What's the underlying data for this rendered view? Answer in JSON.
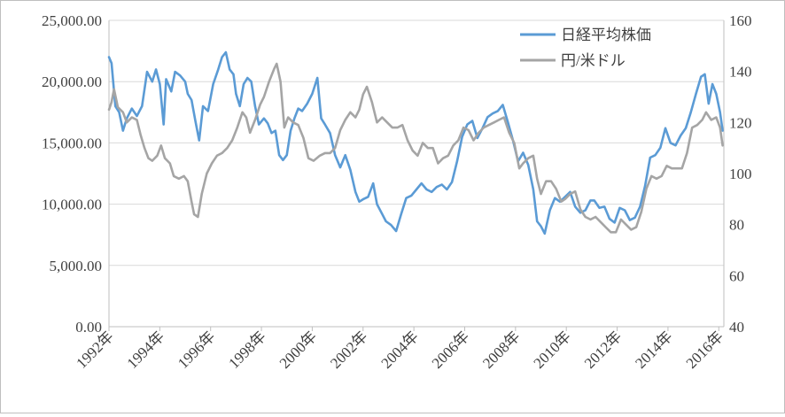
{
  "chart_data": {
    "type": "line",
    "title": "",
    "xlabel": "",
    "ylabel": "",
    "y2label": "",
    "grid": "horizontal",
    "legend_position": "top-right",
    "x_ticks": [
      "1992年",
      "1994年",
      "1996年",
      "1998年",
      "2000年",
      "2002年",
      "2004年",
      "2006年",
      "2008年",
      "2010年",
      "2012年",
      "2014年",
      "2016年"
    ],
    "x_range": [
      1992.0,
      2016.2
    ],
    "left_axis": {
      "range": [
        0,
        25000
      ],
      "ticks": [
        {
          "value": 0,
          "label": "0.00"
        },
        {
          "value": 5000,
          "label": "5,000.00"
        },
        {
          "value": 10000,
          "label": "10,000.00"
        },
        {
          "value": 15000,
          "label": "15,000.00"
        },
        {
          "value": 20000,
          "label": "20,000.00"
        },
        {
          "value": 25000,
          "label": "25,000.00"
        }
      ]
    },
    "right_axis": {
      "range": [
        40,
        160
      ],
      "ticks": [
        {
          "value": 40,
          "label": "40"
        },
        {
          "value": 60,
          "label": "60"
        },
        {
          "value": 80,
          "label": "80"
        },
        {
          "value": 100,
          "label": "100"
        },
        {
          "value": 120,
          "label": "120"
        },
        {
          "value": 140,
          "label": "140"
        },
        {
          "value": 160,
          "label": "160"
        }
      ]
    },
    "series": [
      {
        "name": "日経平均株価",
        "axis": "left",
        "color": "#5b9bd5",
        "points": [
          [
            1992.0,
            22000
          ],
          [
            1992.1,
            21500
          ],
          [
            1992.25,
            18000
          ],
          [
            1992.4,
            17500
          ],
          [
            1992.55,
            16000
          ],
          [
            1992.7,
            17000
          ],
          [
            1992.9,
            17800
          ],
          [
            1993.1,
            17200
          ],
          [
            1993.3,
            18000
          ],
          [
            1993.5,
            20800
          ],
          [
            1993.7,
            20000
          ],
          [
            1993.85,
            21000
          ],
          [
            1994.0,
            19800
          ],
          [
            1994.15,
            16500
          ],
          [
            1994.25,
            20200
          ],
          [
            1994.45,
            19200
          ],
          [
            1994.6,
            20800
          ],
          [
            1994.8,
            20500
          ],
          [
            1995.0,
            20000
          ],
          [
            1995.1,
            19000
          ],
          [
            1995.25,
            18500
          ],
          [
            1995.4,
            16800
          ],
          [
            1995.55,
            15200
          ],
          [
            1995.7,
            18000
          ],
          [
            1995.9,
            17600
          ],
          [
            1996.1,
            19800
          ],
          [
            1996.3,
            21000
          ],
          [
            1996.45,
            22000
          ],
          [
            1996.6,
            22400
          ],
          [
            1996.75,
            21000
          ],
          [
            1996.9,
            20600
          ],
          [
            1997.0,
            19000
          ],
          [
            1997.15,
            18000
          ],
          [
            1997.3,
            19800
          ],
          [
            1997.45,
            20300
          ],
          [
            1997.6,
            20000
          ],
          [
            1997.75,
            18000
          ],
          [
            1997.9,
            16500
          ],
          [
            1998.1,
            17000
          ],
          [
            1998.25,
            16600
          ],
          [
            1998.4,
            15800
          ],
          [
            1998.55,
            16000
          ],
          [
            1998.7,
            14000
          ],
          [
            1998.85,
            13600
          ],
          [
            1999.0,
            14000
          ],
          [
            1999.15,
            16000
          ],
          [
            1999.3,
            17000
          ],
          [
            1999.45,
            17800
          ],
          [
            1999.6,
            17600
          ],
          [
            1999.8,
            18200
          ],
          [
            2000.0,
            19000
          ],
          [
            2000.2,
            20300
          ],
          [
            2000.35,
            17000
          ],
          [
            2000.5,
            16500
          ],
          [
            2000.7,
            15800
          ],
          [
            2000.9,
            14000
          ],
          [
            2001.1,
            13000
          ],
          [
            2001.3,
            14000
          ],
          [
            2001.5,
            12800
          ],
          [
            2001.7,
            11000
          ],
          [
            2001.85,
            10200
          ],
          [
            2002.0,
            10400
          ],
          [
            2002.2,
            10600
          ],
          [
            2002.4,
            11700
          ],
          [
            2002.55,
            10000
          ],
          [
            2002.75,
            9200
          ],
          [
            2002.9,
            8600
          ],
          [
            2003.1,
            8300
          ],
          [
            2003.3,
            7800
          ],
          [
            2003.5,
            9200
          ],
          [
            2003.7,
            10500
          ],
          [
            2003.9,
            10700
          ],
          [
            2004.1,
            11200
          ],
          [
            2004.3,
            11700
          ],
          [
            2004.5,
            11200
          ],
          [
            2004.7,
            11000
          ],
          [
            2004.9,
            11400
          ],
          [
            2005.1,
            11600
          ],
          [
            2005.3,
            11200
          ],
          [
            2005.5,
            11800
          ],
          [
            2005.7,
            13500
          ],
          [
            2005.9,
            15500
          ],
          [
            2006.1,
            16500
          ],
          [
            2006.3,
            16800
          ],
          [
            2006.5,
            15400
          ],
          [
            2006.7,
            16200
          ],
          [
            2006.9,
            17100
          ],
          [
            2007.1,
            17400
          ],
          [
            2007.3,
            17600
          ],
          [
            2007.5,
            18100
          ],
          [
            2007.7,
            16700
          ],
          [
            2007.9,
            15200
          ],
          [
            2008.1,
            13500
          ],
          [
            2008.3,
            14200
          ],
          [
            2008.5,
            13200
          ],
          [
            2008.7,
            11200
          ],
          [
            2008.85,
            8600
          ],
          [
            2009.0,
            8200
          ],
          [
            2009.15,
            7600
          ],
          [
            2009.35,
            9500
          ],
          [
            2009.55,
            10500
          ],
          [
            2009.75,
            10200
          ],
          [
            2009.95,
            10600
          ],
          [
            2010.15,
            11000
          ],
          [
            2010.35,
            9800
          ],
          [
            2010.55,
            9300
          ],
          [
            2010.75,
            9500
          ],
          [
            2010.95,
            10300
          ],
          [
            2011.1,
            10300
          ],
          [
            2011.3,
            9700
          ],
          [
            2011.5,
            9800
          ],
          [
            2011.7,
            8800
          ],
          [
            2011.9,
            8500
          ],
          [
            2012.1,
            9700
          ],
          [
            2012.3,
            9500
          ],
          [
            2012.5,
            8700
          ],
          [
            2012.7,
            8900
          ],
          [
            2012.9,
            9800
          ],
          [
            2013.1,
            11500
          ],
          [
            2013.3,
            13800
          ],
          [
            2013.5,
            14000
          ],
          [
            2013.7,
            14600
          ],
          [
            2013.9,
            16200
          ],
          [
            2014.1,
            15000
          ],
          [
            2014.3,
            14800
          ],
          [
            2014.5,
            15600
          ],
          [
            2014.7,
            16200
          ],
          [
            2014.9,
            17500
          ],
          [
            2015.1,
            19000
          ],
          [
            2015.3,
            20400
          ],
          [
            2015.45,
            20600
          ],
          [
            2015.6,
            18200
          ],
          [
            2015.75,
            19800
          ],
          [
            2015.9,
            19000
          ],
          [
            2016.05,
            17500
          ],
          [
            2016.15,
            16000
          ]
        ]
      },
      {
        "name": "円/米ドル",
        "axis": "right",
        "color": "#a5a5a5",
        "points": [
          [
            1992.0,
            125
          ],
          [
            1992.1,
            128
          ],
          [
            1992.2,
            133
          ],
          [
            1992.35,
            126
          ],
          [
            1992.55,
            124
          ],
          [
            1992.7,
            120
          ],
          [
            1992.9,
            122
          ],
          [
            1993.1,
            121
          ],
          [
            1993.25,
            115
          ],
          [
            1993.4,
            110
          ],
          [
            1993.55,
            106
          ],
          [
            1993.7,
            105
          ],
          [
            1993.9,
            107
          ],
          [
            1994.05,
            111
          ],
          [
            1994.2,
            106
          ],
          [
            1994.4,
            104
          ],
          [
            1994.55,
            99
          ],
          [
            1994.75,
            98
          ],
          [
            1994.95,
            99
          ],
          [
            1995.1,
            97
          ],
          [
            1995.25,
            89
          ],
          [
            1995.35,
            84
          ],
          [
            1995.5,
            83
          ],
          [
            1995.65,
            92
          ],
          [
            1995.85,
            100
          ],
          [
            1996.05,
            104
          ],
          [
            1996.25,
            107
          ],
          [
            1996.45,
            108
          ],
          [
            1996.65,
            110
          ],
          [
            1996.85,
            113
          ],
          [
            1997.05,
            118
          ],
          [
            1997.25,
            124
          ],
          [
            1997.4,
            122
          ],
          [
            1997.55,
            116
          ],
          [
            1997.75,
            121
          ],
          [
            1997.95,
            127
          ],
          [
            1998.1,
            130
          ],
          [
            1998.3,
            136
          ],
          [
            1998.5,
            141
          ],
          [
            1998.6,
            143
          ],
          [
            1998.75,
            136
          ],
          [
            1998.9,
            118
          ],
          [
            1999.05,
            122
          ],
          [
            1999.25,
            120
          ],
          [
            1999.45,
            119
          ],
          [
            1999.65,
            114
          ],
          [
            1999.85,
            106
          ],
          [
            2000.05,
            105
          ],
          [
            2000.3,
            107
          ],
          [
            2000.5,
            108
          ],
          [
            2000.7,
            108
          ],
          [
            2000.9,
            110
          ],
          [
            2001.1,
            117
          ],
          [
            2001.3,
            121
          ],
          [
            2001.5,
            124
          ],
          [
            2001.7,
            122
          ],
          [
            2001.85,
            125
          ],
          [
            2002.0,
            131
          ],
          [
            2002.15,
            134
          ],
          [
            2002.35,
            128
          ],
          [
            2002.55,
            120
          ],
          [
            2002.75,
            122
          ],
          [
            2002.95,
            120
          ],
          [
            2003.15,
            118
          ],
          [
            2003.35,
            118
          ],
          [
            2003.55,
            119
          ],
          [
            2003.75,
            113
          ],
          [
            2003.95,
            109
          ],
          [
            2004.15,
            107
          ],
          [
            2004.35,
            112
          ],
          [
            2004.55,
            110
          ],
          [
            2004.75,
            110
          ],
          [
            2004.95,
            104
          ],
          [
            2005.15,
            106
          ],
          [
            2005.35,
            107
          ],
          [
            2005.55,
            111
          ],
          [
            2005.75,
            113
          ],
          [
            2005.95,
            118
          ],
          [
            2006.15,
            117
          ],
          [
            2006.35,
            113
          ],
          [
            2006.55,
            116
          ],
          [
            2006.75,
            118
          ],
          [
            2006.95,
            119
          ],
          [
            2007.15,
            120
          ],
          [
            2007.35,
            121
          ],
          [
            2007.55,
            122
          ],
          [
            2007.75,
            116
          ],
          [
            2007.95,
            112
          ],
          [
            2008.15,
            102
          ],
          [
            2008.3,
            104
          ],
          [
            2008.5,
            106
          ],
          [
            2008.7,
            107
          ],
          [
            2008.85,
            98
          ],
          [
            2009.0,
            92
          ],
          [
            2009.2,
            97
          ],
          [
            2009.4,
            97
          ],
          [
            2009.6,
            94
          ],
          [
            2009.8,
            89
          ],
          [
            2009.95,
            90
          ],
          [
            2010.15,
            92
          ],
          [
            2010.35,
            93
          ],
          [
            2010.55,
            86
          ],
          [
            2010.75,
            83
          ],
          [
            2010.95,
            82
          ],
          [
            2011.15,
            83
          ],
          [
            2011.35,
            81
          ],
          [
            2011.55,
            79
          ],
          [
            2011.75,
            77
          ],
          [
            2011.95,
            77
          ],
          [
            2012.15,
            82
          ],
          [
            2012.35,
            80
          ],
          [
            2012.55,
            78
          ],
          [
            2012.75,
            79
          ],
          [
            2012.95,
            85
          ],
          [
            2013.15,
            94
          ],
          [
            2013.35,
            99
          ],
          [
            2013.55,
            98
          ],
          [
            2013.75,
            99
          ],
          [
            2013.95,
            103
          ],
          [
            2014.15,
            102
          ],
          [
            2014.35,
            102
          ],
          [
            2014.55,
            102
          ],
          [
            2014.75,
            108
          ],
          [
            2014.95,
            118
          ],
          [
            2015.15,
            119
          ],
          [
            2015.35,
            121
          ],
          [
            2015.5,
            124
          ],
          [
            2015.7,
            121
          ],
          [
            2015.9,
            122
          ],
          [
            2016.05,
            118
          ],
          [
            2016.15,
            111
          ]
        ]
      }
    ]
  }
}
